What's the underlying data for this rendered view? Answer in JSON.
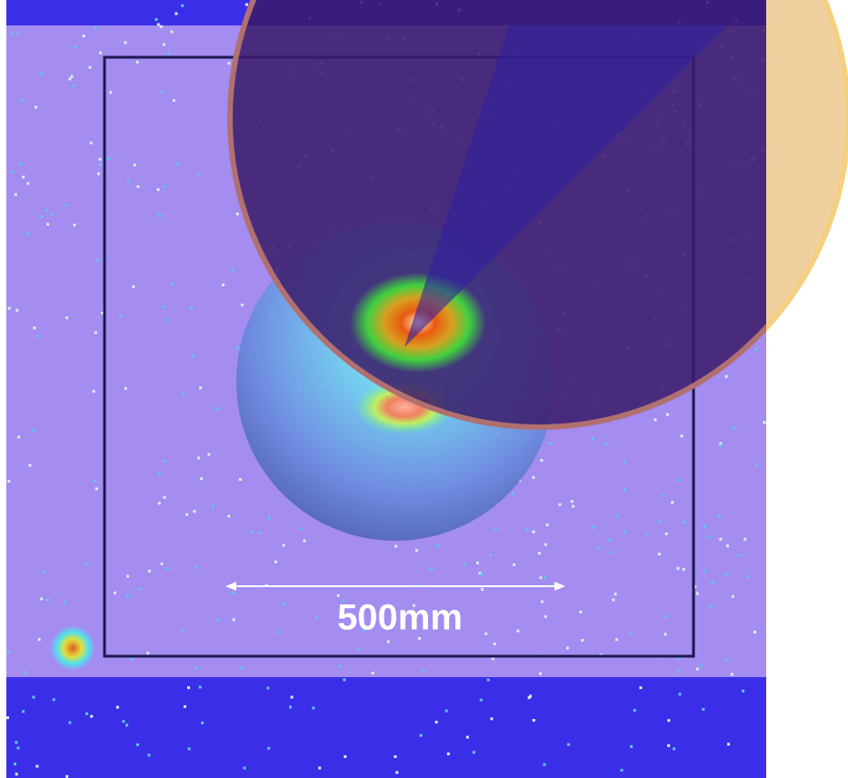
{
  "scale_bar": {
    "label": "500mm"
  }
}
